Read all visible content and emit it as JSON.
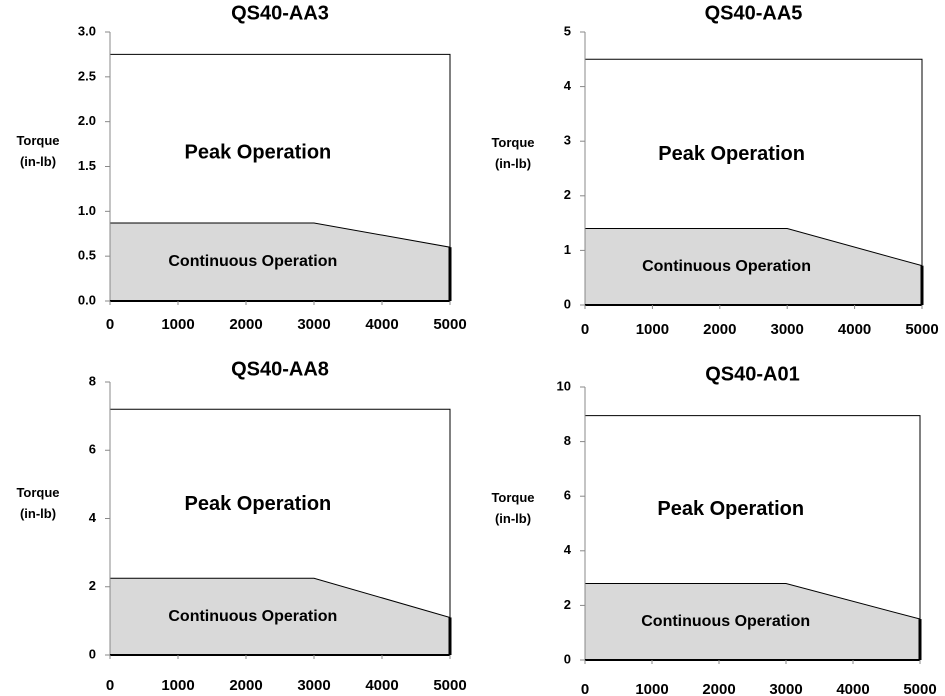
{
  "chart_data": [
    {
      "type": "area",
      "title": "QS40-AA3",
      "ylabel": [
        "Torque",
        "(in-lb)"
      ],
      "xlim": [
        0,
        5000
      ],
      "xticks": [
        0,
        1000,
        2000,
        3000,
        4000,
        5000
      ],
      "ylim": [
        0,
        3
      ],
      "yticks": [
        {
          "value": 0,
          "label": "0.0"
        },
        {
          "value": 0.5,
          "label": "0.5"
        },
        {
          "value": 1,
          "label": "1.0"
        },
        {
          "value": 1.5,
          "label": "1.5"
        },
        {
          "value": 2,
          "label": "2.0"
        },
        {
          "value": 2.5,
          "label": "2.5"
        },
        {
          "value": 3,
          "label": "3.0"
        }
      ],
      "series": [
        {
          "name": "Peak Operation",
          "color": "#ffffff",
          "x": [
            0,
            5000
          ],
          "values": [
            2.75,
            2.75
          ]
        },
        {
          "name": "Continuous Operation",
          "color": "#d9d9d9",
          "x": [
            0,
            3000,
            5000
          ],
          "values": [
            0.87,
            0.87,
            0.6
          ]
        }
      ]
    },
    {
      "type": "area",
      "title": "QS40-AA5",
      "ylabel": [
        "Torque",
        "(in-lb)"
      ],
      "xlim": [
        0,
        5000
      ],
      "xticks": [
        0,
        1000,
        2000,
        3000,
        4000,
        5000
      ],
      "ylim": [
        0,
        5
      ],
      "yticks": [
        0,
        1,
        2,
        3,
        4,
        5
      ],
      "series": [
        {
          "name": "Peak Operation",
          "color": "#ffffff",
          "x": [
            0,
            5000
          ],
          "values": [
            4.5,
            4.5
          ]
        },
        {
          "name": "Continuous Operation",
          "color": "#d9d9d9",
          "x": [
            0,
            3000,
            5000
          ],
          "values": [
            1.4,
            1.4,
            0.72
          ]
        }
      ]
    },
    {
      "type": "area",
      "title": "QS40-AA8",
      "ylabel": [
        "Torque",
        "(in-lb)"
      ],
      "xlim": [
        0,
        5000
      ],
      "xticks": [
        0,
        1000,
        2000,
        3000,
        4000,
        5000
      ],
      "ylim": [
        0,
        8
      ],
      "yticks": [
        0,
        2,
        4,
        6,
        8
      ],
      "series": [
        {
          "name": "Peak Operation",
          "color": "#ffffff",
          "x": [
            0,
            5000
          ],
          "values": [
            7.2,
            7.2
          ]
        },
        {
          "name": "Continuous Operation",
          "color": "#d9d9d9",
          "x": [
            0,
            3000,
            5000
          ],
          "values": [
            2.25,
            2.25,
            1.1
          ]
        }
      ]
    },
    {
      "type": "area",
      "title": "QS40-A01",
      "ylabel": [
        "Torque",
        "(in-lb)"
      ],
      "xlim": [
        0,
        5000
      ],
      "xticks": [
        0,
        1000,
        2000,
        3000,
        4000,
        5000
      ],
      "ylim": [
        0,
        10
      ],
      "yticks": [
        0,
        2,
        4,
        6,
        8,
        10
      ],
      "series": [
        {
          "name": "Peak Operation",
          "color": "#ffffff",
          "x": [
            0,
            5000
          ],
          "values": [
            8.95,
            8.95
          ]
        },
        {
          "name": "Continuous Operation",
          "color": "#d9d9d9",
          "x": [
            0,
            3000,
            5000
          ],
          "values": [
            2.8,
            2.8,
            1.5
          ]
        }
      ]
    }
  ]
}
